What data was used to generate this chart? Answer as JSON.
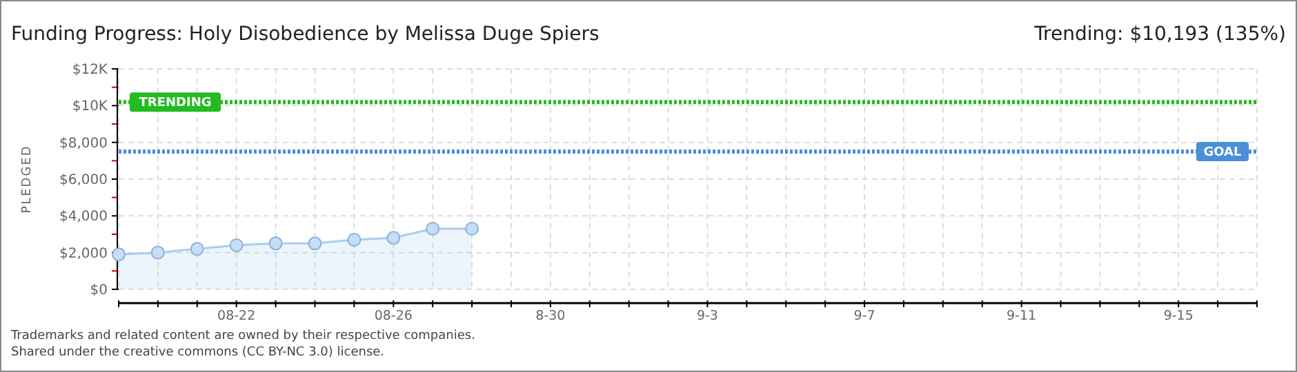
{
  "chart_data": {
    "type": "area",
    "title": "Funding Progress: Holy Disobedience by Melissa Duge Spiers",
    "subtitle": "Trending:  $10,193 (135%)",
    "ylabel": "PLEDGED",
    "x": [
      "--08-19",
      "--08-20",
      "--08-21",
      "--08-22",
      "--08-23",
      "--08-24",
      "--08-25",
      "--08-26",
      "--08-27",
      "--08-28"
    ],
    "series": [
      {
        "color": "#aaccf0",
        "values": [
          1900,
          2000,
          2200,
          2400,
          2500,
          2500,
          2700,
          2800,
          3300,
          3300
        ]
      }
    ],
    "xlim": [
      "--08-19",
      "--09-17"
    ],
    "xticks": [
      {
        "value": "--08-19",
        "label": null
      },
      {
        "value": "--08-20",
        "label": null
      },
      {
        "value": "--08-21",
        "label": null
      },
      {
        "value": "--08-22",
        "label": "08-22"
      },
      {
        "value": "--08-23",
        "label": null
      },
      {
        "value": "--08-24",
        "label": null
      },
      {
        "value": "--08-25",
        "label": null
      },
      {
        "value": "--08-26",
        "label": "08-26"
      },
      {
        "value": "--08-27",
        "label": null
      },
      {
        "value": "--08-28",
        "label": null
      },
      {
        "value": "--08-29",
        "label": null
      },
      {
        "value": "--08-30",
        "label": "8-30"
      },
      {
        "value": "--08-31",
        "label": null
      },
      {
        "value": "--09-01",
        "label": null
      },
      {
        "value": "--09-02",
        "label": null
      },
      {
        "value": "--09-03",
        "label": "9-3"
      },
      {
        "value": "--09-04",
        "label": null
      },
      {
        "value": "--09-05",
        "label": null
      },
      {
        "value": "--09-06",
        "label": null
      },
      {
        "value": "--09-07",
        "label": "9-7"
      },
      {
        "value": "--09-08",
        "label": null
      },
      {
        "value": "--09-09",
        "label": null
      },
      {
        "value": "--09-10",
        "label": null
      },
      {
        "value": "--09-11",
        "label": "9-11"
      },
      {
        "value": "--09-12",
        "label": null
      },
      {
        "value": "--09-13",
        "label": null
      },
      {
        "value": "--09-14",
        "label": null
      },
      {
        "value": "--09-15",
        "label": "9-15"
      },
      {
        "value": "--09-16",
        "label": null
      },
      {
        "value": "--09-17",
        "label": null
      }
    ],
    "ylim": [
      0,
      12000
    ],
    "yticks": [
      {
        "value": 0,
        "label": "$0"
      },
      {
        "value": 1000,
        "label": null
      },
      {
        "value": 2000,
        "label": "$2,000"
      },
      {
        "value": 3000,
        "label": null
      },
      {
        "value": 4000,
        "label": "$4,000"
      },
      {
        "value": 5000,
        "label": null
      },
      {
        "value": 6000,
        "label": "$6,000"
      },
      {
        "value": 7000,
        "label": null
      },
      {
        "value": 8000,
        "label": "$8,000"
      },
      {
        "value": 9000,
        "label": null
      },
      {
        "value": 10000,
        "label": "$10K"
      },
      {
        "value": 11000,
        "label": null
      },
      {
        "value": 12000,
        "label": "$12K"
      }
    ],
    "ref_lines": [
      {
        "axis": "y",
        "value": 10193,
        "label": "TRENDING",
        "color": "#22bb22",
        "line_style": "dotted"
      },
      {
        "axis": "y",
        "value": 7500,
        "label": "GOAL",
        "color": "#4a8fd8",
        "line_style": "dotted"
      }
    ],
    "grid": true,
    "marker": "circle",
    "annotations": [
      "Trademarks and related content are owned by their respective companies.",
      "Shared under the creative commons (CC BY-NC 3.0) license."
    ]
  }
}
